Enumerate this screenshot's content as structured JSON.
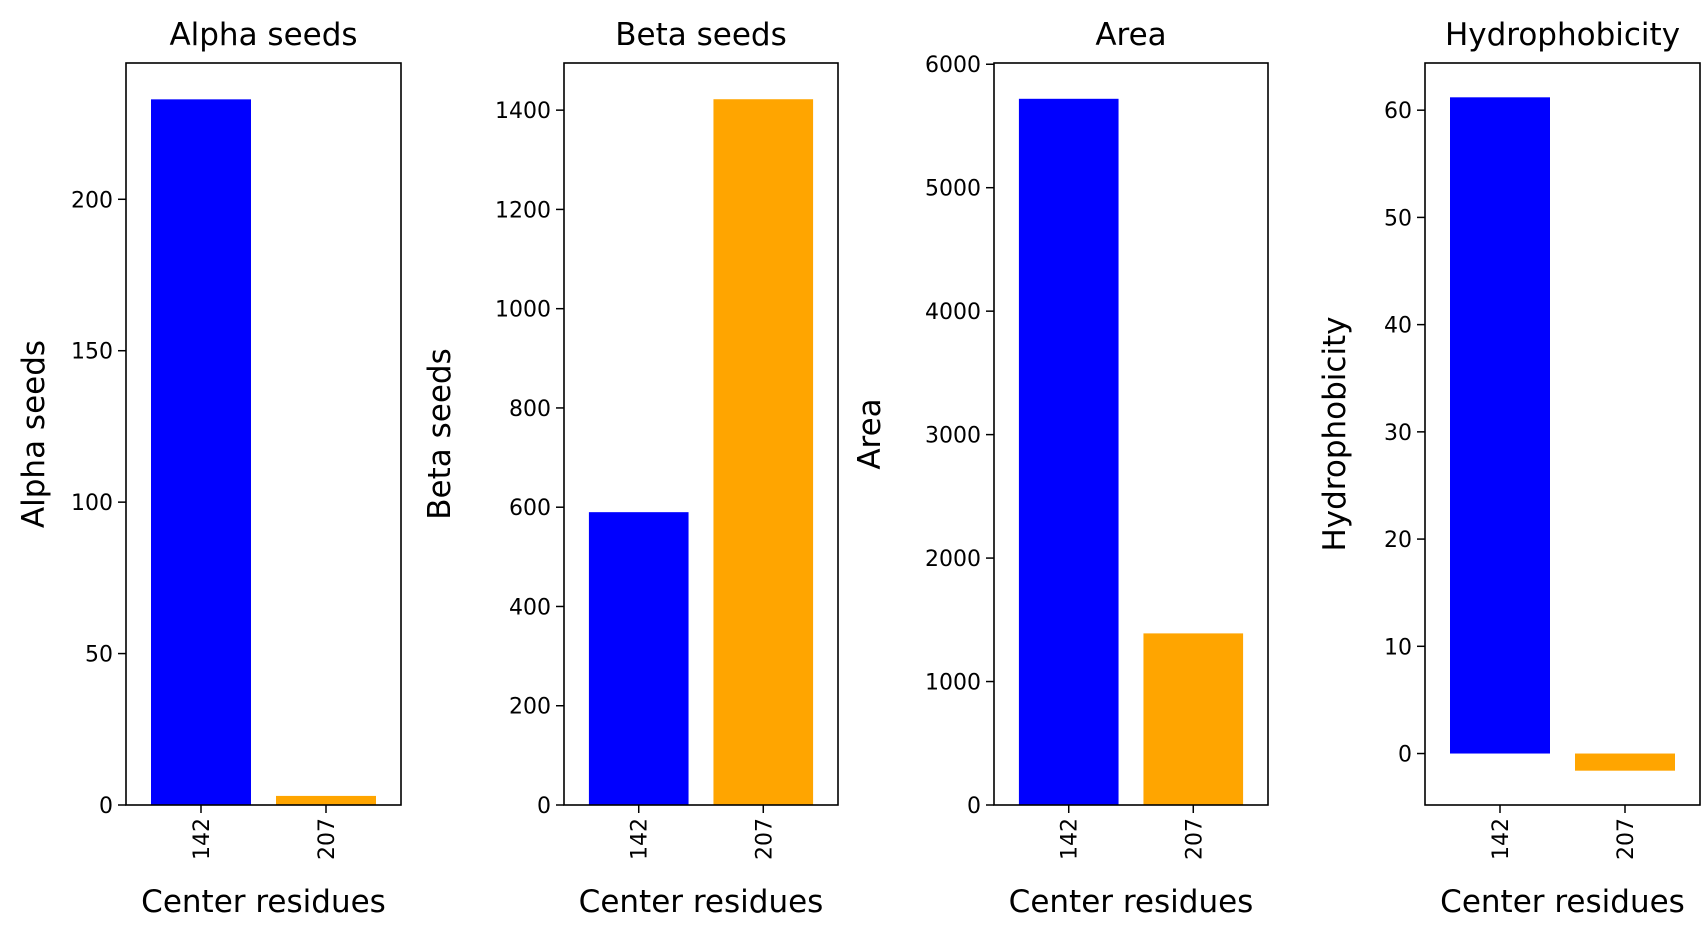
{
  "chart_data": [
    {
      "type": "bar",
      "title": "Alpha seeds",
      "xlabel": "Center residues",
      "ylabel": "Alpha seeds",
      "categories": [
        "142",
        "207"
      ],
      "values": [
        233,
        3
      ],
      "colors": [
        "#0000ff",
        "#ffa500"
      ],
      "ylim": [
        0,
        245
      ],
      "yticks": [
        0,
        50,
        100,
        150,
        200
      ]
    },
    {
      "type": "bar",
      "title": "Beta seeds",
      "xlabel": "Center residues",
      "ylabel": "Beta seeds",
      "categories": [
        "142",
        "207"
      ],
      "values": [
        590,
        1422
      ],
      "colors": [
        "#0000ff",
        "#ffa500"
      ],
      "ylim": [
        0,
        1495
      ],
      "yticks": [
        0,
        200,
        400,
        600,
        800,
        1000,
        1200,
        1400
      ]
    },
    {
      "type": "bar",
      "title": "Area",
      "xlabel": "Center residues",
      "ylabel": "Area",
      "categories": [
        "142",
        "207"
      ],
      "values": [
        5720,
        1390
      ],
      "colors": [
        "#0000ff",
        "#ffa500"
      ],
      "ylim": [
        0,
        6010
      ],
      "yticks": [
        0,
        1000,
        2000,
        3000,
        4000,
        5000,
        6000
      ]
    },
    {
      "type": "bar",
      "title": "Hydrophobicity",
      "xlabel": "Center residues",
      "ylabel": "Hydrophobicity",
      "categories": [
        "142",
        "207"
      ],
      "values": [
        61.2,
        -1.6
      ],
      "colors": [
        "#0000ff",
        "#ffa500"
      ],
      "ylim": [
        -4.8,
        64.4
      ],
      "yticks": [
        0,
        10,
        20,
        30,
        40,
        50,
        60
      ]
    }
  ]
}
